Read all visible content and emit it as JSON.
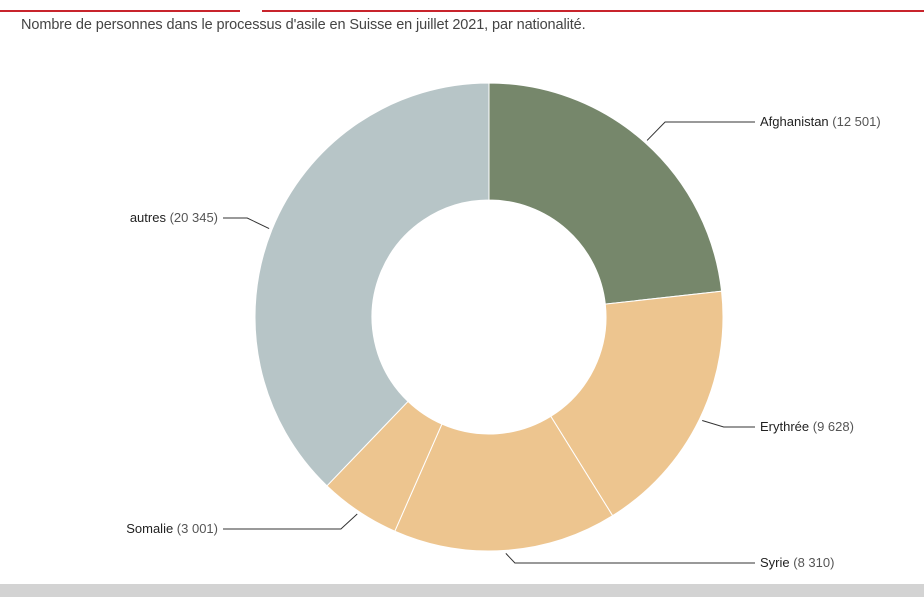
{
  "header": {
    "subtitle": "Nombre de personnes dans le processus d'asile en Suisse en juillet 2021, par nationalité."
  },
  "chart_data": {
    "type": "pie",
    "subtype": "donut",
    "categories": [
      "Afghanistan",
      "Erythrée",
      "Syrie",
      "Somalie",
      "autres"
    ],
    "values": [
      12501,
      9628,
      8310,
      3001,
      20345
    ],
    "value_labels": [
      "(12 501)",
      "(9 628)",
      "(8 310)",
      "(3 001)",
      "(20 345)"
    ],
    "colors": [
      "#76876b",
      "#edc58f",
      "#edc58f",
      "#edc58f",
      "#b7c5c7"
    ],
    "slice_border_color": "#ffffff",
    "leader_line_color": "#333333",
    "start": "top, clockwise"
  },
  "accent_color": "#c8242c"
}
